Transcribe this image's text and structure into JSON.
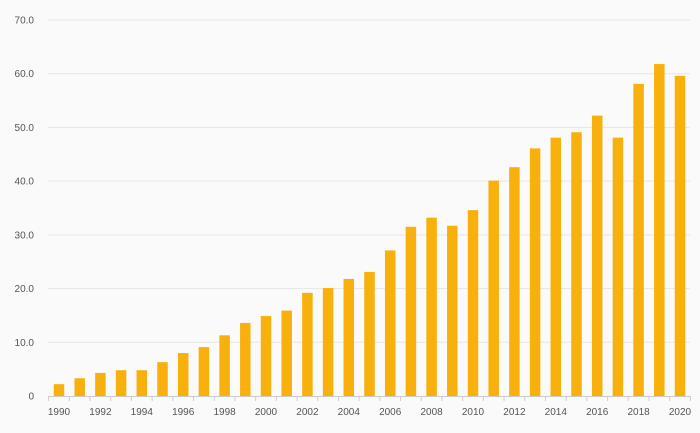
{
  "chart_data": {
    "type": "bar",
    "categories": [
      "1990",
      "1991",
      "1992",
      "1993",
      "1994",
      "1995",
      "1996",
      "1997",
      "1998",
      "1999",
      "2000",
      "2001",
      "2002",
      "2003",
      "2004",
      "2005",
      "2006",
      "2007",
      "2008",
      "2009",
      "2010",
      "2011",
      "2012",
      "2013",
      "2014",
      "2015",
      "2016",
      "2017",
      "2018",
      "2019",
      "2020"
    ],
    "x_tick_labels": [
      "1990",
      "1992",
      "1994",
      "1996",
      "1998",
      "2000",
      "2002",
      "2004",
      "2006",
      "2008",
      "2010",
      "2012",
      "2014",
      "2016",
      "2018",
      "2020"
    ],
    "y_ticks": [
      0,
      10,
      20,
      30,
      40,
      50,
      60,
      70
    ],
    "y_tick_labels": [
      "0",
      "10.0",
      "20.0",
      "30.0",
      "40.0",
      "50.0",
      "60.0",
      "70.0"
    ],
    "series": [
      {
        "values": [
          2.2,
          3.3,
          4.3,
          4.8,
          4.8,
          6.3,
          8.0,
          9.1,
          11.3,
          13.6,
          14.9,
          15.9,
          19.2,
          20.1,
          21.8,
          23.1,
          27.1,
          31.5,
          33.2,
          31.7,
          34.6,
          40.1,
          42.6,
          46.1,
          48.1,
          49.1,
          52.2,
          48.1,
          58.1,
          61.8,
          59.6
        ]
      }
    ],
    "ylim": [
      0,
      70
    ],
    "title": "",
    "xlabel": "",
    "ylabel": "",
    "grid": true,
    "legend": "none",
    "bar_color": "#f8b00c"
  }
}
